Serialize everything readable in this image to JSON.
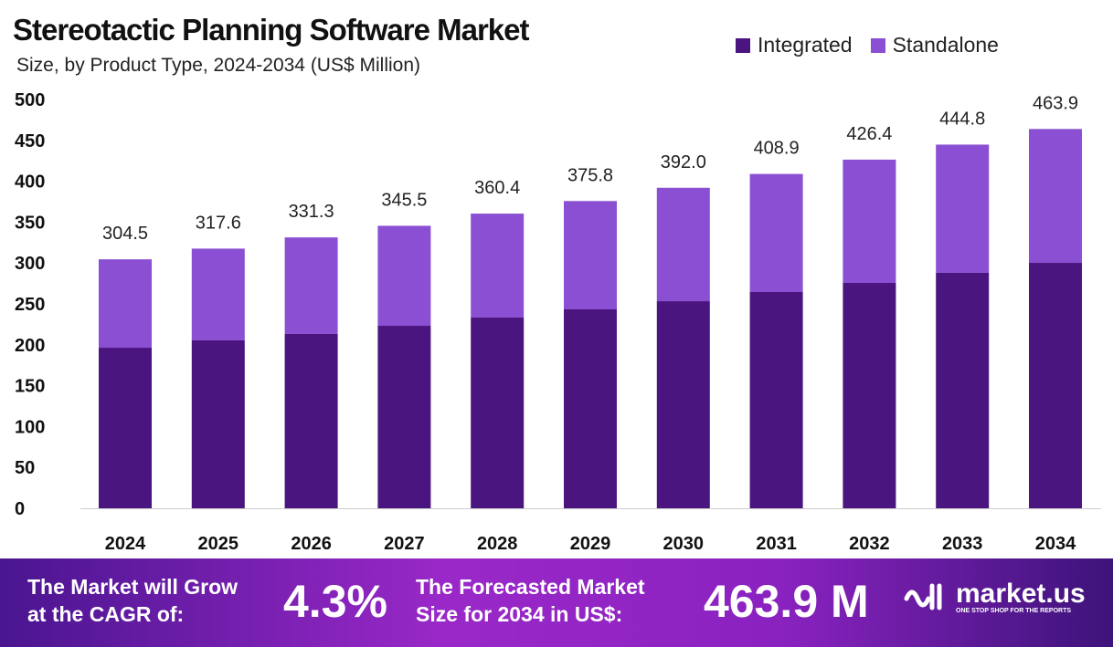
{
  "chart_data": {
    "type": "bar",
    "stacked": true,
    "title": "Stereotactic Planning Software Market",
    "subtitle": "Size, by Product Type, 2024-2034 (US$ Million)",
    "categories": [
      "2024",
      "2025",
      "2026",
      "2027",
      "2028",
      "2029",
      "2030",
      "2031",
      "2032",
      "2033",
      "2034"
    ],
    "series": [
      {
        "name": "Integrated",
        "color": "#4b1580",
        "values": [
          196.4,
          205.4,
          213.2,
          223.2,
          233.3,
          243.3,
          253.3,
          264.5,
          275.7,
          288.0,
          300.2
        ]
      },
      {
        "name": "Standalone",
        "color": "#8a4fd2",
        "values": [
          108.1,
          112.2,
          118.1,
          122.3,
          127.1,
          132.5,
          138.7,
          144.4,
          150.7,
          156.8,
          163.7
        ]
      }
    ],
    "totals": [
      "304.5",
      "317.6",
      "331.3",
      "345.5",
      "360.4",
      "375.8",
      "392.0",
      "408.9",
      "426.4",
      "444.8",
      "463.9"
    ],
    "yticks": [
      "0",
      "50",
      "100",
      "150",
      "200",
      "250",
      "300",
      "350",
      "400",
      "450",
      "500"
    ],
    "ylim": [
      0,
      500
    ],
    "grid": false,
    "legend": "top-right"
  },
  "footer": {
    "cagr_label_1": "The Market will Grow",
    "cagr_label_2": "at the CAGR of:",
    "cagr_value": "4.3%",
    "forecast_label_1": "The Forecasted Market",
    "forecast_label_2": "Size for 2034 in US$:",
    "forecast_value": "463.9 M",
    "logo_text": "market.us",
    "logo_tagline": "ONE STOP SHOP FOR THE REPORTS"
  }
}
